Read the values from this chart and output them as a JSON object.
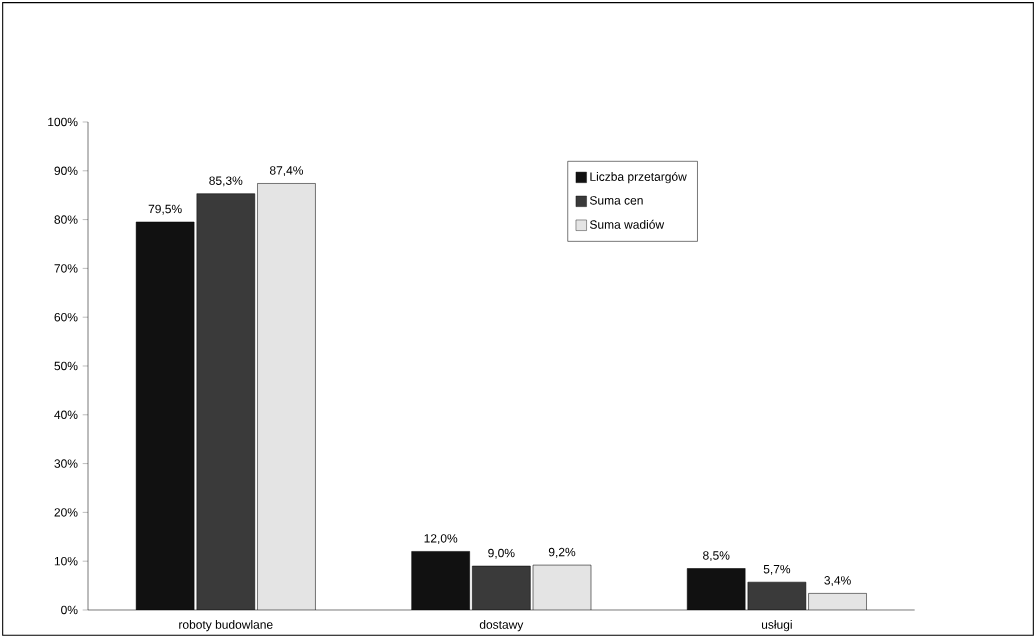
{
  "chart_data": {
    "type": "bar",
    "categories": [
      "roboty budowlane",
      "dostawy",
      "usługi"
    ],
    "series": [
      {
        "name": "Liczba przetargów",
        "color": "#111111",
        "values": [
          79.5,
          12.0,
          8.5
        ],
        "value_labels": [
          "79,5%",
          "12,0%",
          "8,5%"
        ]
      },
      {
        "name": "Suma cen",
        "color": "#3a3a3a",
        "values": [
          85.3,
          9.0,
          5.7
        ],
        "value_labels": [
          "85,3%",
          "9,0%",
          "5,7%"
        ]
      },
      {
        "name": "Suma wadiów",
        "color": "#e4e4e4",
        "values": [
          87.4,
          9.2,
          3.4
        ],
        "value_labels": [
          "87,4%",
          "9,2%",
          "3,4%"
        ]
      }
    ],
    "ylim": [
      0,
      100
    ],
    "yticks": [
      {
        "value": 0,
        "label": "0%"
      },
      {
        "value": 10,
        "label": "10%"
      },
      {
        "value": 20,
        "label": "20%"
      },
      {
        "value": 30,
        "label": "30%"
      },
      {
        "value": 40,
        "label": "40%"
      },
      {
        "value": 50,
        "label": "50%"
      },
      {
        "value": 60,
        "label": "60%"
      },
      {
        "value": 70,
        "label": "70%"
      },
      {
        "value": 80,
        "label": "80%"
      },
      {
        "value": 90,
        "label": "90%"
      },
      {
        "value": 100,
        "label": "100%"
      }
    ],
    "legend": "right"
  }
}
